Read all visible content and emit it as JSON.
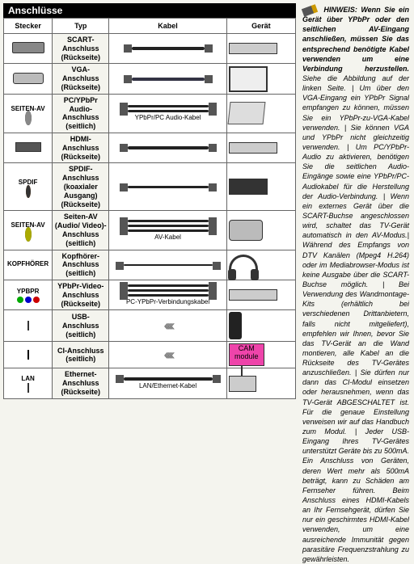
{
  "section_title": "Anschlüsse",
  "headers": {
    "stecker": "Stecker",
    "typ": "Typ",
    "kabel": "Kabel",
    "geraet": "Gerät"
  },
  "rows": [
    {
      "stecker_label": "",
      "typ": "SCART-Anschluss (Rückseite)",
      "kabel_sub": "",
      "icon": "scart",
      "cable": "scart"
    },
    {
      "stecker_label": "",
      "typ": "VGA-Anschluss (Rückseite)",
      "kabel_sub": "",
      "icon": "vga",
      "cable": "vga"
    },
    {
      "stecker_label": "SEITEN-AV",
      "typ": "PC/YPbPr Audio-Anschluss (seitlich)",
      "kabel_sub": "YPbPr/PC Audio-Kabel",
      "icon": "jack",
      "cable": "audio"
    },
    {
      "stecker_label": "",
      "typ": "HDMI-Anschluss (Rückseite)",
      "kabel_sub": "",
      "icon": "hdmi",
      "cable": "hdmi"
    },
    {
      "stecker_label": "SPDIF",
      "typ": "SPDIF-Anschluss (koaxialer Ausgang) (Rückseite)",
      "kabel_sub": "",
      "icon": "spdif",
      "cable": "spdif"
    },
    {
      "stecker_label": "SEITEN-AV",
      "typ": "Seiten-AV (Audio/ Video)-Anschluss (seitlich)",
      "kabel_sub": "AV-Kabel",
      "icon": "jack-y",
      "cable": "av"
    },
    {
      "stecker_label": "KOPFHÖRER",
      "typ": "Kopfhörer-Anschluss (seitlich)",
      "kabel_sub": "",
      "icon": "hp",
      "cable": "hp"
    },
    {
      "stecker_label": "YPBPR",
      "typ": "YPbPr-Video-Anschluss (Rückseite)",
      "kabel_sub": "PC-YPbPr-Verbindungskabel",
      "icon": "ypbpr",
      "cable": "ypbpr"
    },
    {
      "stecker_label": "",
      "typ": "USB-Anschluss (seitlich)",
      "kabel_sub": "",
      "icon": "usb",
      "cable": "chev"
    },
    {
      "stecker_label": "",
      "typ": "CI-Anschluss (seitlich)",
      "kabel_sub": "",
      "icon": "ci",
      "cable": "chev"
    },
    {
      "stecker_label": "LAN",
      "typ": "Ethernet-Anschluss (Rückseite)",
      "kabel_sub": "LAN/Ethernet-Kabel",
      "icon": "lan",
      "cable": "lan"
    }
  ],
  "side": {
    "lead": "HINWEIS: Wenn Sie ein Gerät über YPbPr oder den seitlichen AV-Eingang anschließen, müssen Sie das entsprechend benötigte Kabel verwenden um eine Verbindung herzustellen.",
    "body": "Siehe die Abbildung auf der linken Seite. | Um über den VGA-Eingang ein YPbPr Signal empfangen zu können, müssen Sie ein YPbPr-zu-VGA-Kabel verwenden. | Sie können VGA und YPbPr nicht gleichzeitig verwenden. | Um PC/YPbPr-Audio zu aktivieren, benötigen Sie die seitlichen Audio-Eingänge sowie eine YPbPr/PC-Audiokabel für die Herstellung der Audio-Verbindung. | Wenn ein externes Gerät über die SCART-Buchse angeschlossen wird, schaltet das TV-Gerät automatisch in den AV-Modus.| Während des Empfangs von DTV Kanälen (Mpeg4 H.264) oder im Mediabrowser-Modus ist keine Ausgabe über die SCART-Buchse möglich. | Bei Verwendung des Wandmontage-Kits (erhältlich bei verschiedenen Drittanbietern, falls nicht mitgeliefert), empfehlen wir Ihnen, bevor Sie das TV-Gerät an die Wand montieren, alle Kabel an die Rückseite des TV-Gerätes anzuschließen. | Sie dürfen nur dann das CI-Modul einsetzen oder herausnehmen, wenn das TV-Gerät ABGESCHALTET ist. Für die genaue Einstellung verweisen wir auf das Handbuch zum Modul. | Jeder USB-Eingang Ihres TV-Gerätes unterstützt Geräte bis zu 500mA. Ein Anschluss von Geräten, deren Wert mehr als 500mA beträgt, kann zu Schäden am Fernseher führen. Beim Anschluss eines HDMI-Kabels an Ihr Fernsehgerät, dürfen Sie nur ein geschirmtes HDMI-Kabel verwenden, um eine ausreichende Immunität gegen parasitäre Frequenzstrahlung zu gewährleisten."
  }
}
